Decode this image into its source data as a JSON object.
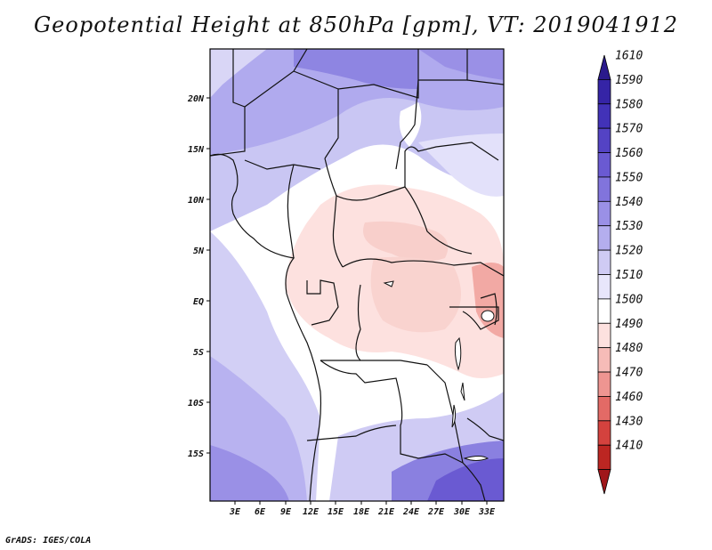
{
  "title": "Geopotential Height at 850hPa [gpm], VT: 2019041912",
  "footer": "GrADS: IGES/COLA",
  "map": {
    "lat_labels": [
      "20N",
      "15N",
      "10N",
      "5N",
      "EQ",
      "5S",
      "10S",
      "15S"
    ],
    "lon_labels": [
      "3E",
      "6E",
      "9E",
      "12E",
      "15E",
      "18E",
      "21E",
      "24E",
      "27E",
      "30E",
      "33E"
    ]
  },
  "colorbar": {
    "levels": [
      "1610",
      "1590",
      "1580",
      "1570",
      "1560",
      "1550",
      "1540",
      "1530",
      "1520",
      "1510",
      "1500",
      "1490",
      "1480",
      "1470",
      "1460",
      "1430",
      "1410"
    ],
    "colors": [
      "#2a1a8c",
      "#3524a6",
      "#4232b8",
      "#5443c4",
      "#6a5ad2",
      "#8174dc",
      "#9a90e6",
      "#b4aeee",
      "#cfcbf4",
      "#e8e6fb",
      "#ffffff",
      "#fde1df",
      "#f6bcb8",
      "#ee9591",
      "#e36a66",
      "#d4423e",
      "#bc2622",
      "#a0161a"
    ]
  },
  "colors": {
    "frame": "#000000",
    "ocean_blue": "#c6c3f2",
    "land_white": "#ffffff",
    "pink_low": "#fce0de"
  }
}
